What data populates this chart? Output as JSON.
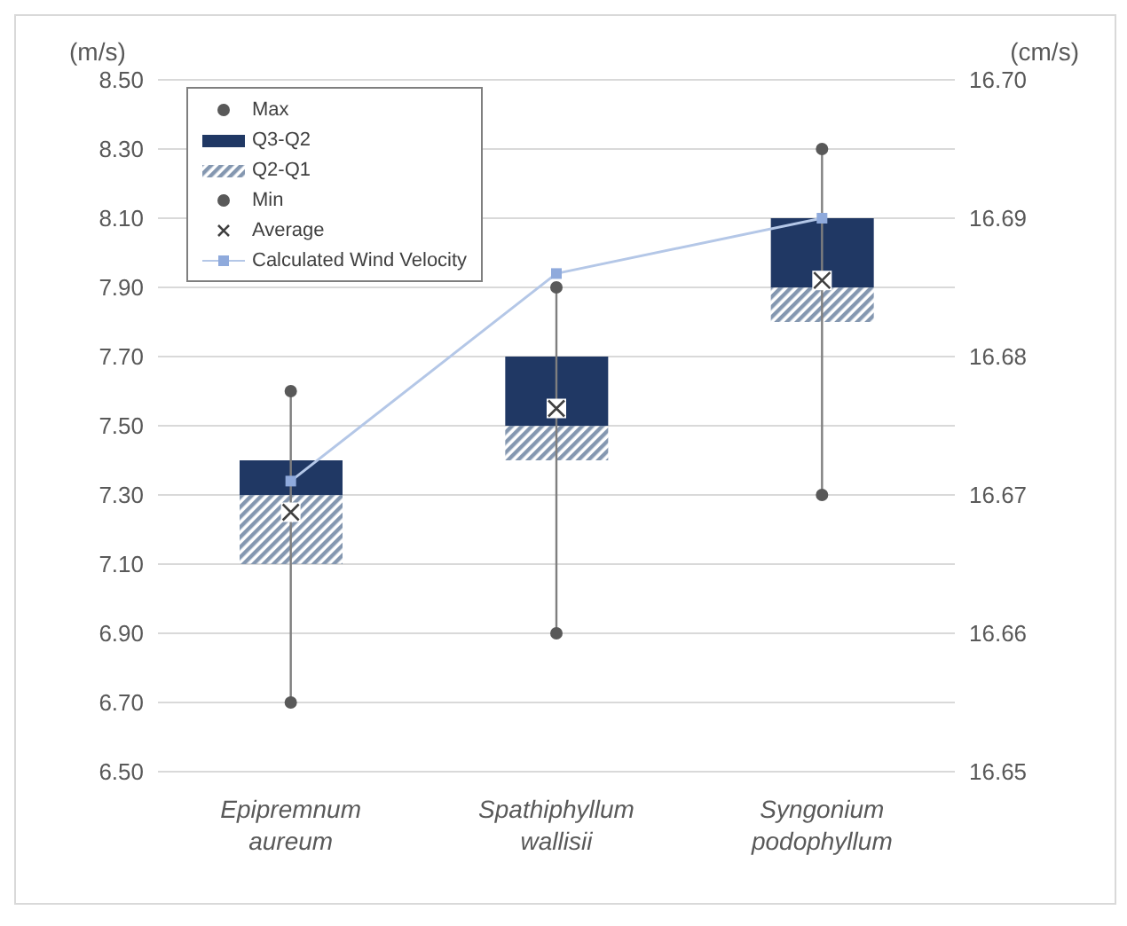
{
  "chart_data": {
    "type": "box",
    "ylabel": "(m/s)",
    "y2label": "(cm/s)",
    "categories": [
      "Epipremnum aureum",
      "Spathiphyllum wallisii",
      "Syngonium podophyllum"
    ],
    "series": [
      {
        "name": "Max",
        "type": "scatter",
        "color": "#595959",
        "values": [
          7.6,
          7.9,
          8.3
        ]
      },
      {
        "name": "Q3-Q2",
        "type": "bar",
        "color": "#203864",
        "base": [
          7.3,
          7.5,
          7.9
        ],
        "values": [
          0.1,
          0.2,
          0.2
        ]
      },
      {
        "name": "Q2-Q1",
        "type": "bar",
        "color": "#8497b0",
        "base": [
          7.1,
          7.4,
          7.8
        ],
        "values": [
          0.2,
          0.1,
          0.1
        ]
      },
      {
        "name": "Min",
        "type": "scatter",
        "color": "#595959",
        "values": [
          6.7,
          6.9,
          7.3
        ]
      },
      {
        "name": "Average",
        "type": "scatter",
        "marker": "cross",
        "color": "#404040",
        "values": [
          7.25,
          7.55,
          7.92
        ]
      },
      {
        "name": "Calculated Wind Velocity",
        "type": "line",
        "axis": "y2",
        "marker": "square",
        "color": "#b4c7e7",
        "values": [
          16.671,
          16.686,
          16.69
        ]
      }
    ],
    "ylim": [
      6.5,
      8.5
    ],
    "yticks": [
      {
        "value": 6.5,
        "label": "6.50"
      },
      {
        "value": 6.7,
        "label": "6.70"
      },
      {
        "value": 6.9,
        "label": "6.90"
      },
      {
        "value": 7.1,
        "label": "7.10"
      },
      {
        "value": 7.3,
        "label": "7.30"
      },
      {
        "value": 7.5,
        "label": "7.50"
      },
      {
        "value": 7.7,
        "label": "7.70"
      },
      {
        "value": 7.9,
        "label": "7.90"
      },
      {
        "value": 8.1,
        "label": "8.10"
      },
      {
        "value": 8.3,
        "label": "8.30"
      },
      {
        "value": 8.5,
        "label": "8.50"
      }
    ],
    "y2lim": [
      16.65,
      16.7
    ],
    "y2ticks": [
      16.65,
      16.66,
      16.67,
      16.68,
      16.69,
      {
        "value": 16.7,
        "label": "16.70"
      }
    ],
    "grid": "y",
    "legend": "top left"
  }
}
